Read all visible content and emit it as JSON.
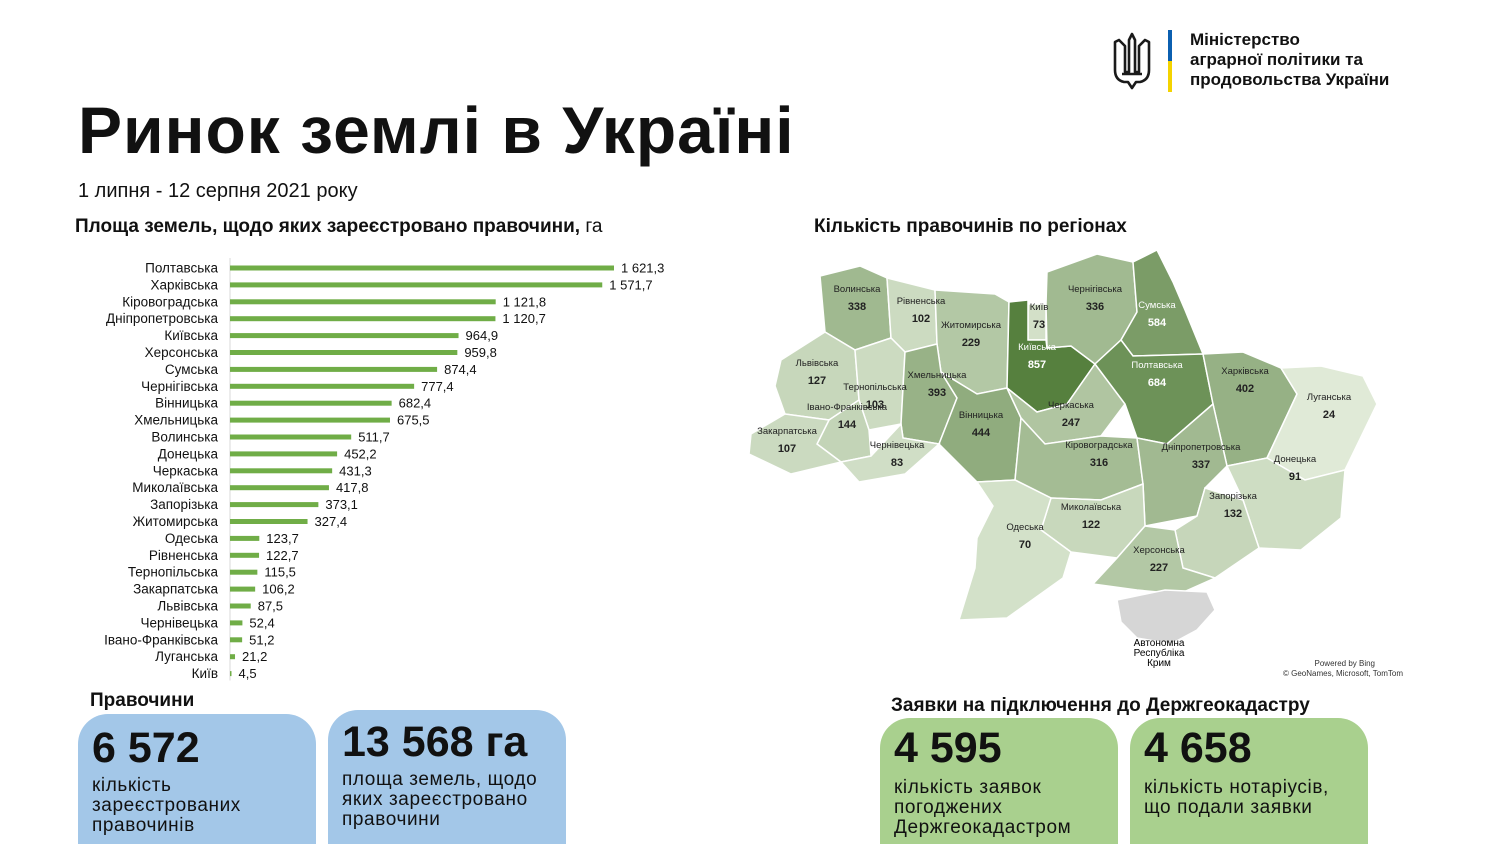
{
  "header": {
    "title": "Ринок землі в Україні",
    "subtitle": "1 липня - 12 серпня 2021 року",
    "ministry_lines": [
      "Міністерство",
      "аграрної політики та",
      "продовольства України"
    ]
  },
  "bar_section": {
    "heading": "Площа земель, щодо яких зареєстровано правочини,",
    "unit": "га"
  },
  "map_section": {
    "heading": "Кількість правочинів по регіонах",
    "credit_line1": "Powered by Bing",
    "credit_line2": "© GeoNames, Microsoft, TomTom",
    "crimea_label": [
      "Автономна",
      "Республіка",
      "Крим"
    ]
  },
  "deals": {
    "heading": "Правочини",
    "count_value": "6 572",
    "count_desc": "кількість зареєстрованих правочинів",
    "area_value": "13 568 га",
    "area_desc": "площа земель, щодо яких зареєстровано правочини"
  },
  "applications": {
    "heading": "Заявки на підключення до Держгеокадастру",
    "approved_value": "4 595",
    "approved_desc": "кількість заявок погоджених Держгеокадастром",
    "notaries_value": "4 658",
    "notaries_desc": "кількість нотаріусів, що подали заявки"
  },
  "colors": {
    "bar": "#70ad47",
    "card_blue": "#a3c7e8",
    "card_green": "#a9d08e",
    "flag_blue": "#0b5fb0",
    "flag_yellow": "#f4d300"
  },
  "chart_data": [
    {
      "type": "bar",
      "orientation": "horizontal",
      "categories": [
        "Полтавська",
        "Харківська",
        "Кіровоградська",
        "Дніпропетровська",
        "Київська",
        "Херсонська",
        "Сумська",
        "Чернігівська",
        "Вінницька",
        "Хмельницька",
        "Волинська",
        "Донецька",
        "Черкаська",
        "Миколаївська",
        "Запорізька",
        "Житомирська",
        "Одеська",
        "Рівненська",
        "Тернопільська",
        "Закарпатська",
        "Львівська",
        "Чернівецька",
        "Івано-Франківська",
        "Луганська",
        "Київ"
      ],
      "values": [
        1621.3,
        1571.7,
        1121.8,
        1120.7,
        964.9,
        959.8,
        874.4,
        777.4,
        682.4,
        675.5,
        511.7,
        452.2,
        431.3,
        417.8,
        373.1,
        327.4,
        123.7,
        122.7,
        115.5,
        106.2,
        87.5,
        52.4,
        51.2,
        21.2,
        4.5
      ],
      "value_labels": [
        "1 621,3",
        "1 571,7",
        "1 121,8",
        "1 120,7",
        "964,9",
        "959,8",
        "874,4",
        "777,4",
        "682,4",
        "675,5",
        "511,7",
        "452,2",
        "431,3",
        "417,8",
        "373,1",
        "327,4",
        "123,7",
        "122,7",
        "115,5",
        "106,2",
        "87,5",
        "52,4",
        "51,2",
        "21,2",
        "4,5"
      ],
      "unit": "га",
      "grid": false
    },
    {
      "type": "choropleth-map",
      "regions": [
        {
          "name": "Волинська",
          "value": 338
        },
        {
          "name": "Рівненська",
          "value": 102
        },
        {
          "name": "Житомирська",
          "value": 229
        },
        {
          "name": "Київ",
          "value": 73
        },
        {
          "name": "Київська",
          "value": 857
        },
        {
          "name": "Чернігівська",
          "value": 336
        },
        {
          "name": "Сумська",
          "value": 584
        },
        {
          "name": "Львівська",
          "value": 127
        },
        {
          "name": "Тернопільська",
          "value": 103
        },
        {
          "name": "Хмельницька",
          "value": 393
        },
        {
          "name": "Вінницька",
          "value": 444
        },
        {
          "name": "Івано-Франківська",
          "value": 144
        },
        {
          "name": "Закарпатська",
          "value": 107
        },
        {
          "name": "Чернівецька",
          "value": 83
        },
        {
          "name": "Черкаська",
          "value": 247
        },
        {
          "name": "Полтавська",
          "value": 684
        },
        {
          "name": "Харківська",
          "value": 402
        },
        {
          "name": "Луганська",
          "value": 24
        },
        {
          "name": "Кіровоградська",
          "value": 316
        },
        {
          "name": "Дніпропетровська",
          "value": 337
        },
        {
          "name": "Донецька",
          "value": 91
        },
        {
          "name": "Запорізька",
          "value": 132
        },
        {
          "name": "Миколаївська",
          "value": 122
        },
        {
          "name": "Одеська",
          "value": 70
        },
        {
          "name": "Херсонська",
          "value": 227
        }
      ]
    }
  ]
}
